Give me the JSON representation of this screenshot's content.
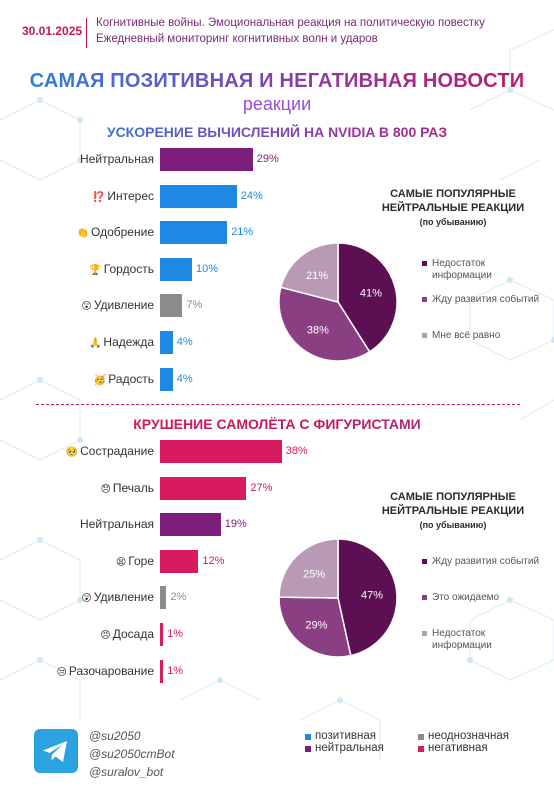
{
  "header": {
    "date": "30.01.2025",
    "line1": "Когнитивные войны. Эмоциональная реакция на политическую повестку",
    "line2": "Ежедневный мониторинг когнитивных волн и ударов"
  },
  "title": "САМАЯ ПОЗИТИВНАЯ И НЕГАТИВНАЯ НОВОСТИ",
  "subtitle": "реакции",
  "colors": {
    "positive": "#1e88e5",
    "neutral": "#7b1f7a",
    "ambiguous": "#8c8c8c",
    "negative": "#d81b60"
  },
  "sections": [
    {
      "title": "УСКОРЕНИЕ ВЫЧИСЛЕНИЙ НА NVIDIA В 800 РАЗ",
      "chart_data": {
        "type": "bar",
        "orientation": "horizontal",
        "value_unit": "%",
        "categories": [
          "Нейтральная",
          "Интерес",
          "Одобрение",
          "Гордость",
          "Удивление",
          "Надежда",
          "Радость"
        ],
        "emoji": [
          "",
          "⁉️",
          "👏",
          "🏆",
          "😲",
          "🙏",
          "🥳"
        ],
        "values": [
          29,
          24,
          21,
          10,
          7,
          4,
          4
        ],
        "labels": [
          "29%",
          "24%",
          "21%",
          "10%",
          "7%",
          "4%",
          "4%"
        ],
        "sentiment": [
          "neutral",
          "positive",
          "positive",
          "positive",
          "ambiguous",
          "positive",
          "positive"
        ],
        "xlim": [
          0,
          45
        ]
      },
      "pie": {
        "title": "САМЫЕ ПОПУЛЯРНЫЕ НЕЙТРАЛЬНЫЕ РЕАКЦИИ",
        "subtitle": "(по убыванию)",
        "chart_data": {
          "type": "pie",
          "categories": [
            "Недостаток информации",
            "Жду развития событий",
            "Мне всё равно"
          ],
          "values": [
            41,
            38,
            21
          ],
          "labels": [
            "41%",
            "38%",
            "21%"
          ],
          "colors": [
            "#5c0f52",
            "#8b3f83",
            "#b89ab4"
          ]
        }
      }
    },
    {
      "title": "КРУШЕНИЕ САМОЛЁТА С ФИГУРИСТАМИ",
      "chart_data": {
        "type": "bar",
        "orientation": "horizontal",
        "value_unit": "%",
        "categories": [
          "Сострадание",
          "Печаль",
          "Нейтральная",
          "Горе",
          "Удивление",
          "Досада",
          "Разочарование"
        ],
        "emoji": [
          "🥺",
          "😞",
          "",
          "😫",
          "😲",
          "😠",
          "😒"
        ],
        "values": [
          38,
          27,
          19,
          12,
          2,
          1,
          1
        ],
        "labels": [
          "38%",
          "27%",
          "19%",
          "12%",
          "2%",
          "1%",
          "1%"
        ],
        "sentiment": [
          "negative",
          "negative",
          "neutral",
          "negative",
          "ambiguous",
          "negative",
          "negative"
        ],
        "xlim": [
          0,
          45
        ]
      },
      "pie": {
        "title": "САМЫЕ ПОПУЛЯРНЫЕ НЕЙТРАЛЬНЫЕ РЕАКЦИИ",
        "subtitle": "(по убыванию)",
        "chart_data": {
          "type": "pie",
          "categories": [
            "Жду развития событий",
            "Это ожидаемо",
            "Недостаток информации"
          ],
          "values": [
            47,
            29,
            25
          ],
          "labels": [
            "47%",
            "29%",
            "25%"
          ],
          "colors": [
            "#5c0f52",
            "#8b3f83",
            "#b89ab4"
          ]
        }
      }
    }
  ],
  "footer": {
    "logo_icon": "telegram-icon",
    "handles": [
      "@su2050",
      "@su2050cmBot",
      "@suralov_bot"
    ],
    "legend": [
      {
        "label": "позитивная",
        "sentiment": "positive"
      },
      {
        "label": "неоднозначная",
        "sentiment": "ambiguous"
      },
      {
        "label": "нейтральная",
        "sentiment": "neutral"
      },
      {
        "label": "негативная",
        "sentiment": "negative"
      }
    ]
  }
}
